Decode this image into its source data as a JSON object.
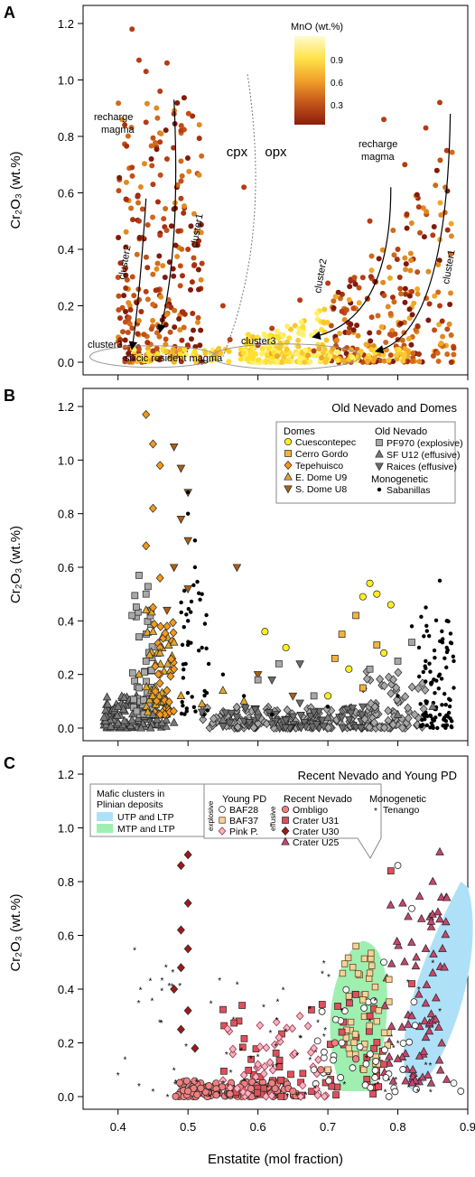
{
  "chart_data": [
    {
      "type": "scatter",
      "panel_label": "A",
      "xlabel": "",
      "ylabel": "Cr₂O₃ (wt.%)",
      "ylim": [
        0,
        1.2
      ],
      "xlim": [
        0.35,
        0.9
      ],
      "y_ticks": [
        "0.0",
        "0.2",
        "0.4",
        "0.6",
        "0.8",
        "1.0",
        "1.2"
      ],
      "colorbar": {
        "title": "MnO (wt.%)",
        "ticks": [
          "0.9",
          "0.6",
          "0.3"
        ],
        "colors": [
          "#fffbd0",
          "#ffe24a",
          "#f2a12a",
          "#c4561b",
          "#8c1d0c"
        ]
      },
      "annotations": [
        "recharge magma",
        "cpx",
        "opx",
        "recharge magma",
        "cluster2",
        "cluster1",
        "cluster2",
        "cluster1",
        "cluster3",
        "cluster3",
        "silicic resident magma"
      ],
      "series": [
        {
          "name": "cpx",
          "points": [
            [
              0.42,
              1.18
            ],
            [
              0.43,
              1.07
            ],
            [
              0.47,
              1.06
            ],
            [
              0.44,
              1.03
            ],
            [
              0.46,
              0.96
            ],
            [
              0.48,
              0.88
            ],
            [
              0.44,
              0.85
            ],
            [
              0.49,
              0.82
            ],
            [
              0.42,
              0.69
            ],
            [
              0.46,
              0.78
            ],
            [
              0.47,
              0.72
            ],
            [
              0.45,
              0.63
            ],
            [
              0.49,
              0.58
            ],
            [
              0.43,
              0.5
            ],
            [
              0.46,
              0.45
            ],
            [
              0.5,
              0.4
            ],
            [
              0.41,
              0.33
            ],
            [
              0.44,
              0.25
            ],
            [
              0.47,
              0.2
            ],
            [
              0.52,
              0.35
            ],
            [
              0.55,
              0.2
            ],
            [
              0.58,
              0.62
            ],
            [
              0.56,
              0.08
            ],
            [
              0.42,
              0.02
            ],
            [
              0.45,
              0.04
            ]
          ]
        },
        {
          "name": "opx",
          "points": [
            [
              0.78,
              0.86
            ],
            [
              0.84,
              0.83
            ],
            [
              0.86,
              0.92
            ],
            [
              0.87,
              0.75
            ],
            [
              0.81,
              0.7
            ],
            [
              0.83,
              0.55
            ],
            [
              0.85,
              0.45
            ],
            [
              0.76,
              0.5
            ],
            [
              0.8,
              0.4
            ],
            [
              0.75,
              0.3
            ],
            [
              0.7,
              0.28
            ],
            [
              0.66,
              0.22
            ],
            [
              0.62,
              0.12
            ],
            [
              0.6,
              0.06
            ],
            [
              0.72,
              0.18
            ],
            [
              0.82,
              0.25
            ],
            [
              0.86,
              0.2
            ],
            [
              0.88,
              0.05
            ],
            [
              0.8,
              0.08
            ],
            [
              0.68,
              0.04
            ]
          ]
        }
      ]
    },
    {
      "type": "scatter",
      "panel_label": "B",
      "title": "Old Nevado and Domes",
      "xlabel": "",
      "ylabel": "Cr₂O₃ (wt.%)",
      "ylim": [
        0,
        1.2
      ],
      "xlim": [
        0.35,
        0.9
      ],
      "y_ticks": [
        "0.0",
        "0.2",
        "0.4",
        "0.6",
        "0.8",
        "1.0",
        "1.2"
      ],
      "legend_groups": [
        "Domes",
        "Old Nevado",
        "Monogenetic"
      ],
      "series": [
        {
          "name": "Cuescontepec",
          "marker": "circle",
          "color": "#ffee22",
          "points": [
            [
              0.61,
              0.36
            ],
            [
              0.64,
              0.3
            ],
            [
              0.75,
              0.49
            ],
            [
              0.77,
              0.5
            ],
            [
              0.79,
              0.46
            ],
            [
              0.76,
              0.54
            ],
            [
              0.73,
              0.22
            ],
            [
              0.78,
              0.28
            ],
            [
              0.7,
              0.12
            ]
          ]
        },
        {
          "name": "Cerro Gordo",
          "marker": "square",
          "color": "#f1b43a",
          "points": [
            [
              0.72,
              0.35
            ],
            [
              0.74,
              0.42
            ],
            [
              0.77,
              0.31
            ],
            [
              0.75,
              0.15
            ],
            [
              0.71,
              0.26
            ]
          ]
        },
        {
          "name": "Tepehuisco",
          "marker": "diamond",
          "color": "#f39a1d",
          "points": [
            [
              0.44,
              1.17
            ],
            [
              0.45,
              1.06
            ],
            [
              0.46,
              0.98
            ],
            [
              0.45,
              0.82
            ],
            [
              0.44,
              0.68
            ],
            [
              0.46,
              0.56
            ],
            [
              0.45,
              0.45
            ],
            [
              0.47,
              0.38
            ],
            [
              0.46,
              0.3
            ],
            [
              0.48,
              0.22
            ],
            [
              0.47,
              0.14
            ]
          ]
        },
        {
          "name": "E. Dome U9",
          "marker": "triangle-up",
          "color": "#e2a628",
          "points": [
            [
              0.44,
              0.44
            ],
            [
              0.45,
              0.36
            ],
            [
              0.46,
              0.28
            ],
            [
              0.43,
              0.2
            ],
            [
              0.48,
              0.32
            ],
            [
              0.49,
              0.12
            ],
            [
              0.52,
              0.09
            ],
            [
              0.55,
              0.14
            ],
            [
              0.58,
              0.1
            ]
          ]
        },
        {
          "name": "S. Dome U8",
          "marker": "triangle-down",
          "color": "#ab6014",
          "points": [
            [
              0.48,
              1.05
            ],
            [
              0.49,
              0.97
            ],
            [
              0.5,
              0.88
            ],
            [
              0.49,
              0.78
            ],
            [
              0.5,
              0.7
            ],
            [
              0.48,
              0.6
            ],
            [
              0.5,
              0.52
            ],
            [
              0.47,
              0.44
            ],
            [
              0.57,
              0.6
            ],
            [
              0.6,
              0.2
            ],
            [
              0.65,
              0.12
            ]
          ]
        },
        {
          "name": "PF970 (explosive)",
          "marker": "square",
          "color": "#a8a8a8",
          "points": [
            [
              0.43,
              0.57
            ],
            [
              0.44,
              0.5
            ],
            [
              0.42,
              0.42
            ],
            [
              0.43,
              0.34
            ],
            [
              0.44,
              0.25
            ],
            [
              0.43,
              0.15
            ],
            [
              0.6,
              0.18
            ],
            [
              0.63,
              0.24
            ],
            [
              0.68,
              0.12
            ],
            [
              0.76,
              0.22
            ],
            [
              0.8,
              0.25
            ],
            [
              0.82,
              0.32
            ]
          ]
        },
        {
          "name": "SF U12 (effusive)",
          "marker": "triangle-up",
          "color": "#7a7a7a",
          "points": [
            [
              0.38,
              0.04
            ],
            [
              0.4,
              0.08
            ],
            [
              0.42,
              0.03
            ],
            [
              0.45,
              0.05
            ],
            [
              0.48,
              0.02
            ],
            [
              0.55,
              0.03
            ],
            [
              0.6,
              0.06
            ],
            [
              0.7,
              0.04
            ],
            [
              0.8,
              0.05
            ],
            [
              0.85,
              0.08
            ]
          ]
        },
        {
          "name": "Raices (effusive)",
          "marker": "triangle-down",
          "color": "#6c6c6c",
          "points": [
            [
              0.52,
              0.06
            ],
            [
              0.56,
              0.02
            ],
            [
              0.6,
              0.04
            ],
            [
              0.64,
              0.03
            ],
            [
              0.68,
              0.06
            ],
            [
              0.72,
              0.04
            ],
            [
              0.75,
              0.08
            ],
            [
              0.62,
              0.18
            ],
            [
              0.66,
              0.24
            ]
          ]
        },
        {
          "name": "Sabanillas",
          "marker": "dot",
          "color": "#000000",
          "points": [
            [
              0.5,
              0.88
            ],
            [
              0.5,
              0.8
            ],
            [
              0.51,
              0.7
            ],
            [
              0.51,
              0.6
            ],
            [
              0.52,
              0.5
            ],
            [
              0.5,
              0.4
            ],
            [
              0.52,
              0.3
            ],
            [
              0.55,
              0.2
            ],
            [
              0.58,
              0.12
            ],
            [
              0.62,
              0.05
            ],
            [
              0.7,
              0.08
            ],
            [
              0.8,
              0.12
            ],
            [
              0.82,
              0.38
            ],
            [
              0.84,
              0.45
            ],
            [
              0.86,
              0.55
            ],
            [
              0.87,
              0.4
            ],
            [
              0.87,
              0.3
            ],
            [
              0.86,
              0.2
            ],
            [
              0.84,
              0.1
            ],
            [
              0.86,
              0.05
            ],
            [
              0.88,
              0.25
            ],
            [
              0.88,
              0.15
            ]
          ]
        }
      ]
    },
    {
      "type": "scatter",
      "panel_label": "C",
      "title": "Recent Nevado and Young PD",
      "xlabel": "Enstatite (mol fraction)",
      "ylabel": "Cr₂O₃ (wt.%)",
      "ylim": [
        0,
        1.2
      ],
      "xlim": [
        0.35,
        0.9
      ],
      "x_ticks": [
        "0.4",
        "0.5",
        "0.6",
        "0.7",
        "0.8",
        "0.9"
      ],
      "y_ticks": [
        "0.0",
        "0.2",
        "0.4",
        "0.6",
        "0.8",
        "1.0",
        "1.2"
      ],
      "mafic_legend": {
        "title": [
          "Mafic clusters in",
          "Plinian deposits"
        ],
        "items": [
          {
            "name": "UTP and LTP",
            "color": "#aee1f7"
          },
          {
            "name": "MTP and LTP",
            "color": "#9ff0b0"
          }
        ]
      },
      "legend_groups": [
        "Young PD",
        "Recent Nevado",
        "Monogenetic"
      ],
      "legend_side_labels": [
        "explosive",
        "effusive"
      ],
      "series": [
        {
          "name": "BAF28",
          "marker": "open-circle",
          "color": "#ffffff",
          "points": [
            [
              0.8,
              0.86
            ],
            [
              0.82,
              0.7
            ],
            [
              0.78,
              0.5
            ],
            [
              0.76,
              0.3
            ],
            [
              0.72,
              0.2
            ],
            [
              0.68,
              0.1
            ],
            [
              0.88,
              0.05
            ],
            [
              0.89,
              0.02
            ]
          ]
        },
        {
          "name": "BAF37",
          "marker": "open-square",
          "color": "#f2d39a",
          "points": [
            [
              0.74,
              0.56
            ],
            [
              0.76,
              0.46
            ],
            [
              0.75,
              0.36
            ],
            [
              0.77,
              0.28
            ],
            [
              0.73,
              0.18
            ],
            [
              0.7,
              0.1
            ]
          ]
        },
        {
          "name": "Pink P.",
          "marker": "open-diamond",
          "color": "#f6b6c0",
          "points": [
            [
              0.6,
              0.12
            ],
            [
              0.63,
              0.22
            ],
            [
              0.66,
              0.3
            ],
            [
              0.68,
              0.18
            ],
            [
              0.55,
              0.06
            ],
            [
              0.58,
              0.08
            ]
          ]
        },
        {
          "name": "Ombligo",
          "marker": "circle",
          "color": "#f08080",
          "points": [
            [
              0.5,
              0.02
            ],
            [
              0.53,
              0.04
            ],
            [
              0.56,
              0.01
            ],
            [
              0.59,
              0.03
            ],
            [
              0.62,
              0.05
            ],
            [
              0.65,
              0.02
            ],
            [
              0.69,
              0.1
            ],
            [
              0.71,
              0.2
            ],
            [
              0.74,
              0.14
            ]
          ]
        },
        {
          "name": "Crater U31",
          "marker": "square",
          "color": "#e0505a",
          "points": [
            [
              0.79,
              0.84
            ],
            [
              0.74,
              0.38
            ],
            [
              0.76,
              0.3
            ],
            [
              0.72,
              0.24
            ],
            [
              0.78,
              0.12
            ],
            [
              0.82,
              0.42
            ]
          ]
        },
        {
          "name": "Crater U30",
          "marker": "diamond",
          "color": "#9e1a1a",
          "points": [
            [
              0.5,
              0.9
            ],
            [
              0.49,
              0.86
            ],
            [
              0.5,
              0.72
            ],
            [
              0.49,
              0.62
            ],
            [
              0.5,
              0.55
            ],
            [
              0.49,
              0.48
            ],
            [
              0.48,
              0.4
            ],
            [
              0.5,
              0.32
            ],
            [
              0.49,
              0.25
            ],
            [
              0.51,
              0.18
            ]
          ]
        },
        {
          "name": "Crater U25",
          "marker": "triangle-up",
          "color": "#c5466e",
          "points": [
            [
              0.86,
              0.91
            ],
            [
              0.85,
              0.8
            ],
            [
              0.87,
              0.74
            ],
            [
              0.86,
              0.66
            ],
            [
              0.84,
              0.55
            ],
            [
              0.85,
              0.46
            ],
            [
              0.83,
              0.38
            ],
            [
              0.82,
              0.3
            ],
            [
              0.84,
              0.22
            ],
            [
              0.8,
              0.14
            ]
          ]
        },
        {
          "name": "Tenango",
          "marker": "star",
          "color": "#000000",
          "points": [
            [
              0.4,
              0.08
            ],
            [
              0.41,
              0.14
            ],
            [
              0.43,
              0.04
            ],
            [
              0.45,
              0.02
            ],
            [
              0.48,
              0.1
            ],
            [
              0.55,
              0.05
            ],
            [
              0.6,
              0.15
            ],
            [
              0.66,
              0.22
            ],
            [
              0.72,
              0.32
            ],
            [
              0.76,
              0.28
            ],
            [
              0.8,
              0.2
            ],
            [
              0.83,
              0.4
            ],
            [
              0.85,
              0.5
            ],
            [
              0.86,
              0.32
            ],
            [
              0.84,
              0.12
            ]
          ]
        }
      ]
    }
  ]
}
